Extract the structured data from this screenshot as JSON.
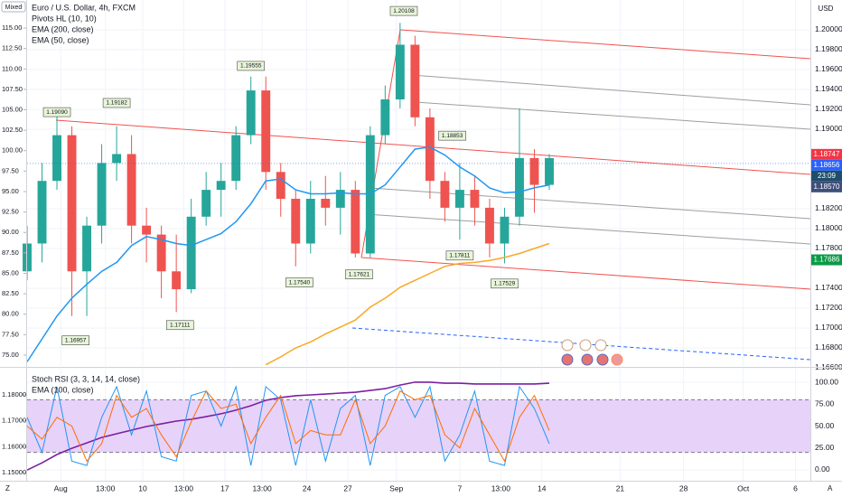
{
  "header": {
    "scale_mode": "Mixed",
    "currency": "USD"
  },
  "chart_data": [
    {
      "type": "candlestick",
      "title": "Euro / U.S. Dollar, 4h, FXCM",
      "indicator": "Pivots HL (10, 10)",
      "x": [
        0,
        4,
        8,
        12,
        16,
        20,
        24,
        28,
        32,
        36,
        40,
        44,
        48,
        52,
        56,
        60,
        64,
        68,
        72,
        76,
        80,
        84,
        88,
        92,
        96,
        100,
        104,
        108,
        112,
        116,
        120,
        124,
        128,
        132,
        136,
        140
      ],
      "candles": {
        "up_color": "#26a69a",
        "down_color": "#ef5350",
        "open": [
          1.1757,
          1.1785,
          1.1848,
          1.1894,
          1.1757,
          1.1803,
          1.1866,
          1.1875,
          1.1803,
          1.1794,
          1.1757,
          1.1739,
          1.1812,
          1.1839,
          1.1848,
          1.1894,
          1.1939,
          1.1857,
          1.183,
          1.1785,
          1.183,
          1.1821,
          1.1839,
          1.1775,
          1.1894,
          1.193,
          1.1985,
          1.1912,
          1.1848,
          1.1821,
          1.1839,
          1.1821,
          1.1785,
          1.1812,
          1.1871,
          1.1844
        ],
        "high": [
          1.1803,
          1.1866,
          1.1916,
          1.1903,
          1.1812,
          1.1885,
          1.1903,
          1.1894,
          1.1821,
          1.1803,
          1.1794,
          1.183,
          1.1857,
          1.1866,
          1.1903,
          1.1953,
          1.1953,
          1.1866,
          1.1839,
          1.1848,
          1.1853,
          1.1857,
          1.1848,
          1.1903,
          1.1944,
          1.2007,
          1.1994,
          1.1921,
          1.1857,
          1.1866,
          1.1853,
          1.183,
          1.1821,
          1.1921,
          1.188,
          1.1875
        ],
        "low": [
          1.1748,
          1.1766,
          1.1839,
          1.1712,
          1.1712,
          1.1785,
          1.1848,
          1.1785,
          1.1766,
          1.173,
          1.1716,
          1.1735,
          1.1803,
          1.1812,
          1.1839,
          1.1885,
          1.1839,
          1.1812,
          1.1762,
          1.1775,
          1.1803,
          1.1794,
          1.1771,
          1.1771,
          1.1885,
          1.1921,
          1.1903,
          1.183,
          1.1807,
          1.1789,
          1.1803,
          1.1771,
          1.1765,
          1.1803,
          1.1816,
          1.1839
        ],
        "close": [
          1.1785,
          1.1848,
          1.1894,
          1.1757,
          1.1803,
          1.1866,
          1.1875,
          1.1803,
          1.1794,
          1.1757,
          1.1739,
          1.1812,
          1.1839,
          1.1848,
          1.1894,
          1.1939,
          1.1857,
          1.183,
          1.1785,
          1.183,
          1.1821,
          1.1839,
          1.1775,
          1.1894,
          1.193,
          1.1985,
          1.1912,
          1.1848,
          1.1821,
          1.1839,
          1.1821,
          1.1785,
          1.1812,
          1.1871,
          1.1844,
          1.1871
        ]
      },
      "series": [
        {
          "name": "EMA (200, close)",
          "color": "#f9a825",
          "values": [
            null,
            null,
            null,
            null,
            null,
            null,
            null,
            null,
            null,
            null,
            null,
            null,
            null,
            null,
            null,
            null,
            1.1663,
            1.1671,
            1.168,
            1.1686,
            1.1694,
            1.1701,
            1.1708,
            1.1721,
            1.173,
            1.1741,
            1.1748,
            1.1755,
            1.1762,
            1.1765,
            1.1766,
            1.1768,
            1.1771,
            1.1775,
            1.178,
            1.1785
          ]
        },
        {
          "name": "EMA (50, close)",
          "color": "#2196f3",
          "values": [
            1.1666,
            1.1689,
            1.1712,
            1.173,
            1.1744,
            1.1757,
            1.1766,
            1.1783,
            1.1792,
            1.1789,
            1.1785,
            1.1783,
            1.1789,
            1.1795,
            1.1807,
            1.1825,
            1.1848,
            1.185,
            1.1839,
            1.1835,
            1.1835,
            1.1836,
            1.1835,
            1.1835,
            1.1844,
            1.1862,
            1.188,
            1.1882,
            1.1874,
            1.1862,
            1.1853,
            1.1841,
            1.1836,
            1.1837,
            1.1841,
            1.1844
          ]
        }
      ],
      "pivots": [
        {
          "x": 8,
          "value": 1.1909,
          "label": "1.19090"
        },
        {
          "x": 13,
          "value": 1.16957,
          "label": "1.16957"
        },
        {
          "x": 24,
          "value": 1.19182,
          "label": "1.19182"
        },
        {
          "x": 41,
          "value": 1.17111,
          "label": "1.17111"
        },
        {
          "x": 60,
          "value": 1.19555,
          "label": "1.19555"
        },
        {
          "x": 73,
          "value": 1.1754,
          "label": "1.17540"
        },
        {
          "x": 89,
          "value": 1.17621,
          "label": "1.17621"
        },
        {
          "x": 101,
          "value": 1.20108,
          "label": "1.20108"
        },
        {
          "x": 114,
          "value": 1.18853,
          "label": "1.18853"
        },
        {
          "x": 116,
          "value": 1.17811,
          "label": "1.17811"
        },
        {
          "x": 128,
          "value": 1.17529,
          "label": "1.17529"
        }
      ],
      "price_labels": [
        {
          "value": 1.18747,
          "label": "1.18747",
          "color": "#f23645"
        },
        {
          "value": 1.18656,
          "label": "1.18656",
          "color": "#2962ff"
        },
        {
          "value": 1.1857,
          "label": "1.18570",
          "color": "#3f4f7a"
        },
        {
          "value": 1.17686,
          "label": "1.17686",
          "color": "#0b9b45"
        }
      ],
      "countdown": "23:09",
      "xlim": [
        0,
        210
      ],
      "xticks": [
        {
          "value": 9,
          "label": "Aug"
        },
        {
          "value": 21,
          "label": "13:00"
        },
        {
          "value": 31,
          "label": "10"
        },
        {
          "value": 42,
          "label": "13:00"
        },
        {
          "value": 53,
          "label": "17"
        },
        {
          "value": 63,
          "label": "13:00"
        },
        {
          "value": 75,
          "label": "24"
        },
        {
          "value": 86,
          "label": "27"
        },
        {
          "value": 99,
          "label": "Sep"
        },
        {
          "value": 116,
          "label": "7"
        },
        {
          "value": 127,
          "label": "13:00"
        },
        {
          "value": 138,
          "label": "14"
        },
        {
          "value": 159,
          "label": "21"
        },
        {
          "value": 176,
          "label": "28"
        },
        {
          "value": 192,
          "label": "Oct"
        },
        {
          "value": 206,
          "label": "6"
        }
      ],
      "ylim": [
        1.16618,
        1.203
      ],
      "yticks": [
        {
          "value": 1.2,
          "label": "1.20000"
        },
        {
          "value": 1.198,
          "label": "1.19800"
        },
        {
          "value": 1.196,
          "label": "1.19600"
        },
        {
          "value": 1.194,
          "label": "1.19400"
        },
        {
          "value": 1.192,
          "label": "1.19200"
        },
        {
          "value": 1.19,
          "label": "1.19000"
        },
        {
          "value": 1.182,
          "label": "1.18200"
        },
        {
          "value": 1.18,
          "label": "1.18000"
        },
        {
          "value": 1.178,
          "label": "1.17800"
        },
        {
          "value": 1.174,
          "label": "1.17400"
        },
        {
          "value": 1.172,
          "label": "1.17200"
        },
        {
          "value": 1.17,
          "label": "1.17000"
        },
        {
          "value": 1.168,
          "label": "1.16800"
        },
        {
          "value": 1.166,
          "label": "1.16600"
        }
      ],
      "y2lim": [
        73.67,
        118.43
      ],
      "y2ticks": [
        {
          "value": 115,
          "label": "115.00"
        },
        {
          "value": 112.5,
          "label": "112.50"
        },
        {
          "value": 110,
          "label": "110.00"
        },
        {
          "value": 107.5,
          "label": "107.50"
        },
        {
          "value": 105,
          "label": "105.00"
        },
        {
          "value": 102.5,
          "label": "102.50"
        },
        {
          "value": 100,
          "label": "100.00"
        },
        {
          "value": 97.5,
          "label": "97.50"
        },
        {
          "value": 95,
          "label": "95.00"
        },
        {
          "value": 92.5,
          "label": "92.50"
        },
        {
          "value": 90,
          "label": "90.00"
        },
        {
          "value": 87.5,
          "label": "87.50"
        },
        {
          "value": 85,
          "label": "85.00"
        },
        {
          "value": 82.5,
          "label": "82.50"
        },
        {
          "value": 80,
          "label": "80.00"
        },
        {
          "value": 77.5,
          "label": "77.50"
        },
        {
          "value": 75,
          "label": "75.00"
        }
      ],
      "grid": true
    },
    {
      "type": "line",
      "title": "Stoch RSI (3, 3, 14, 14, close)",
      "x": [
        0,
        4,
        8,
        12,
        16,
        20,
        24,
        28,
        32,
        36,
        40,
        44,
        48,
        52,
        56,
        60,
        64,
        68,
        72,
        76,
        80,
        84,
        88,
        92,
        96,
        100,
        104,
        108,
        112,
        116,
        120,
        124,
        128,
        132,
        136,
        140
      ],
      "series": [
        {
          "name": "EMA (100, close)",
          "color": "#7b1fa2",
          "axis": "y2",
          "values": [
            1.151,
            1.1538,
            1.157,
            1.1594,
            1.1615,
            1.1636,
            1.165,
            1.1664,
            1.1678,
            1.1688,
            1.1699,
            1.1706,
            1.1716,
            1.1727,
            1.1741,
            1.1758,
            1.1779,
            1.179,
            1.1797,
            1.18,
            1.1803,
            1.1807,
            1.181,
            1.1817,
            1.1824,
            1.1838,
            1.1849,
            1.1849,
            1.1845,
            1.1845,
            1.1842,
            1.1842,
            1.1842,
            1.1842,
            1.1842,
            1.1845
          ]
        },
        {
          "color": "#2196f3",
          "values": [
            60,
            20,
            95,
            10,
            5,
            60,
            95,
            40,
            90,
            15,
            10,
            85,
            90,
            50,
            95,
            5,
            95,
            80,
            5,
            80,
            10,
            70,
            85,
            5,
            85,
            95,
            60,
            95,
            10,
            40,
            90,
            10,
            5,
            95,
            70,
            30
          ]
        },
        {
          "color": "#ff6d00",
          "values": [
            50,
            35,
            60,
            50,
            10,
            30,
            85,
            60,
            70,
            40,
            15,
            55,
            90,
            70,
            75,
            30,
            60,
            85,
            30,
            45,
            40,
            40,
            80,
            30,
            50,
            90,
            80,
            85,
            40,
            25,
            70,
            40,
            10,
            60,
            85,
            45
          ]
        }
      ],
      "bands": [
        20,
        80
      ],
      "band_color": "#e7d2f9",
      "xlim": [
        0,
        210
      ],
      "ylim": [
        -12.4,
        115.5
      ],
      "yticks": [
        {
          "value": 100,
          "label": "100.00"
        },
        {
          "value": 75,
          "label": "75.00"
        },
        {
          "value": 50,
          "label": "50.00"
        },
        {
          "value": 25,
          "label": "25.00"
        },
        {
          "value": 0,
          "label": "0.00"
        }
      ],
      "y2lim": [
        1.1469,
        1.1901
      ],
      "y2ticks": [
        {
          "value": 1.18,
          "label": "1.18000"
        },
        {
          "value": 1.17,
          "label": "1.17000"
        },
        {
          "value": 1.16,
          "label": "1.16000"
        },
        {
          "value": 1.15,
          "label": "1.15000"
        }
      ],
      "grid": true
    }
  ],
  "footer": {
    "left_button": "Z",
    "right_button": "A"
  }
}
